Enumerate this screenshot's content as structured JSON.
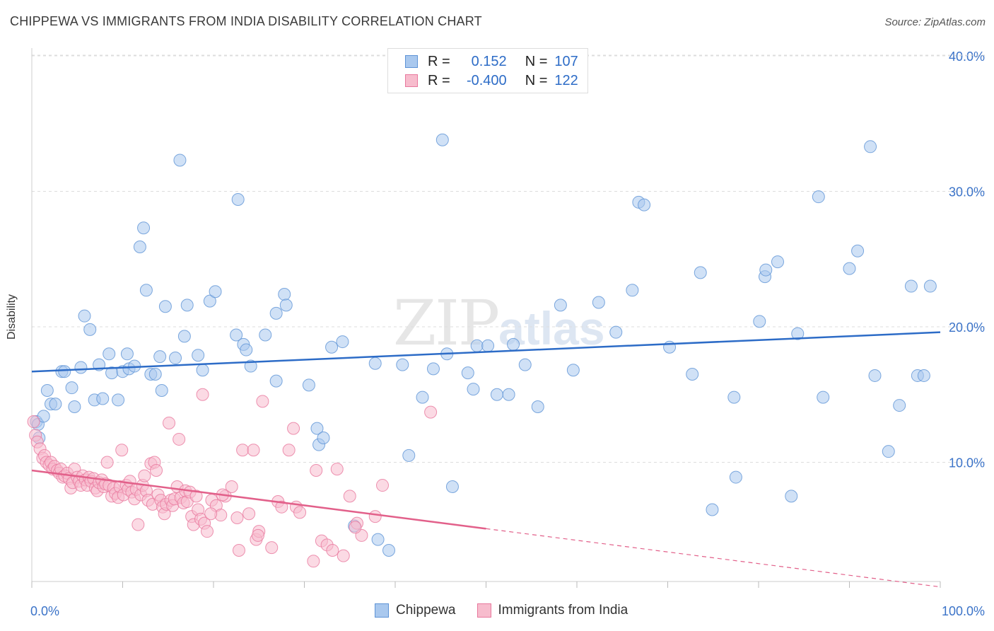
{
  "title": "CHIPPEWA VS IMMIGRANTS FROM INDIA DISABILITY CORRELATION CHART",
  "source": "Source: ZipAtlas.com",
  "watermark": {
    "zip": "ZIP",
    "atlas": "atlas"
  },
  "legend_top": {
    "rows": [
      {
        "r_label": "R =",
        "r_value": "0.152",
        "n_label": "N =",
        "n_value": "107"
      },
      {
        "r_label": "R =",
        "r_value": "-0.400",
        "n_label": "N =",
        "n_value": "122"
      }
    ]
  },
  "legend_bottom": [
    "Chippewa",
    "Immigrants from India"
  ],
  "colors": {
    "blue_fill": "#a9c8ee",
    "blue_stroke": "#5e93d6",
    "blue_line": "#2d6cc7",
    "pink_fill": "#f7bccd",
    "pink_stroke": "#e8789d",
    "pink_line": "#e2608a",
    "grid": "#dddddd",
    "tick_label": "#3b73c8"
  },
  "chart_data": {
    "type": "scatter",
    "title": "CHIPPEWA VS IMMIGRANTS FROM INDIA DISABILITY CORRELATION CHART",
    "xlabel": "",
    "ylabel": "Disability",
    "xlim": [
      0,
      100
    ],
    "ylim": [
      0,
      40
    ],
    "x_tick_labels": [
      "0.0%",
      "100.0%"
    ],
    "y_ticks": [
      10,
      20,
      30,
      40
    ],
    "y_tick_labels": [
      "10.0%",
      "20.0%",
      "30.0%",
      "40.0%"
    ],
    "grid": true,
    "series": [
      {
        "name": "Chippewa",
        "R": 0.152,
        "N": 107,
        "trend": {
          "x0": 0,
          "y0": 16.7,
          "x1": 100,
          "y1": 19.6,
          "dashed_from": null
        },
        "points": [
          [
            0.5,
            13.0
          ],
          [
            0.7,
            12.8
          ],
          [
            0.8,
            11.8
          ],
          [
            1.3,
            13.4
          ],
          [
            1.7,
            15.3
          ],
          [
            2.1,
            14.3
          ],
          [
            2.6,
            14.3
          ],
          [
            3.3,
            16.7
          ],
          [
            3.6,
            16.7
          ],
          [
            4.4,
            15.5
          ],
          [
            4.7,
            14.1
          ],
          [
            5.4,
            17.0
          ],
          [
            5.8,
            20.8
          ],
          [
            6.4,
            19.8
          ],
          [
            6.9,
            14.6
          ],
          [
            7.4,
            17.2
          ],
          [
            7.8,
            14.7
          ],
          [
            8.5,
            18.0
          ],
          [
            8.8,
            16.6
          ],
          [
            9.5,
            14.6
          ],
          [
            10.0,
            16.7
          ],
          [
            10.5,
            18.0
          ],
          [
            10.7,
            16.9
          ],
          [
            11.3,
            17.1
          ],
          [
            11.9,
            25.9
          ],
          [
            12.3,
            27.3
          ],
          [
            12.6,
            22.7
          ],
          [
            13.1,
            16.5
          ],
          [
            13.6,
            16.5
          ],
          [
            14.1,
            17.8
          ],
          [
            14.3,
            15.3
          ],
          [
            14.7,
            21.5
          ],
          [
            15.8,
            17.7
          ],
          [
            16.3,
            32.3
          ],
          [
            16.8,
            19.3
          ],
          [
            17.1,
            21.6
          ],
          [
            18.3,
            17.9
          ],
          [
            18.8,
            16.8
          ],
          [
            19.6,
            21.9
          ],
          [
            20.2,
            22.6
          ],
          [
            22.5,
            19.4
          ],
          [
            22.7,
            29.4
          ],
          [
            23.3,
            18.7
          ],
          [
            23.6,
            18.3
          ],
          [
            24.1,
            17.1
          ],
          [
            25.7,
            19.4
          ],
          [
            26.9,
            16.0
          ],
          [
            26.9,
            21.0
          ],
          [
            27.8,
            22.4
          ],
          [
            28.0,
            21.6
          ],
          [
            30.5,
            15.7
          ],
          [
            31.4,
            12.5
          ],
          [
            31.6,
            11.3
          ],
          [
            32.1,
            11.8
          ],
          [
            33.0,
            18.5
          ],
          [
            34.2,
            18.9
          ],
          [
            35.5,
            5.3
          ],
          [
            37.8,
            17.3
          ],
          [
            38.1,
            4.3
          ],
          [
            39.3,
            3.5
          ],
          [
            40.8,
            17.2
          ],
          [
            41.5,
            10.5
          ],
          [
            43.0,
            14.8
          ],
          [
            44.2,
            16.9
          ],
          [
            45.2,
            33.8
          ],
          [
            45.7,
            18.0
          ],
          [
            46.3,
            8.2
          ],
          [
            48.0,
            16.6
          ],
          [
            48.6,
            15.4
          ],
          [
            49.0,
            18.6
          ],
          [
            50.2,
            18.6
          ],
          [
            51.2,
            15.0
          ],
          [
            52.5,
            15.0
          ],
          [
            53.0,
            18.7
          ],
          [
            54.3,
            17.2
          ],
          [
            55.7,
            14.1
          ],
          [
            58.2,
            21.6
          ],
          [
            59.6,
            16.8
          ],
          [
            62.4,
            21.8
          ],
          [
            64.3,
            19.6
          ],
          [
            66.1,
            22.7
          ],
          [
            66.8,
            29.2
          ],
          [
            67.4,
            29.0
          ],
          [
            70.2,
            18.5
          ],
          [
            72.7,
            16.5
          ],
          [
            73.6,
            24.0
          ],
          [
            74.9,
            6.5
          ],
          [
            77.3,
            14.8
          ],
          [
            77.5,
            8.9
          ],
          [
            80.1,
            20.4
          ],
          [
            80.7,
            23.7
          ],
          [
            80.8,
            24.2
          ],
          [
            82.1,
            24.8
          ],
          [
            83.6,
            7.5
          ],
          [
            84.3,
            19.5
          ],
          [
            86.6,
            29.6
          ],
          [
            87.1,
            14.8
          ],
          [
            90.0,
            24.3
          ],
          [
            90.9,
            25.6
          ],
          [
            92.3,
            33.3
          ],
          [
            92.8,
            16.4
          ],
          [
            94.3,
            10.8
          ],
          [
            95.5,
            14.2
          ],
          [
            96.8,
            23.0
          ],
          [
            97.5,
            16.4
          ],
          [
            98.2,
            16.4
          ],
          [
            98.9,
            23.0
          ]
        ]
      },
      {
        "name": "Immigrants from India",
        "R": -0.4,
        "N": 122,
        "trend": {
          "x0": 0,
          "y0": 9.4,
          "x1": 100,
          "y1": 0.8,
          "dashed_from": 50
        },
        "points": [
          [
            0.2,
            13.0
          ],
          [
            0.4,
            12.0
          ],
          [
            0.6,
            11.5
          ],
          [
            0.9,
            11.0
          ],
          [
            1.2,
            10.3
          ],
          [
            1.4,
            10.5
          ],
          [
            1.6,
            10.0
          ],
          [
            1.9,
            9.8
          ],
          [
            2.1,
            10.0
          ],
          [
            2.3,
            9.5
          ],
          [
            2.5,
            9.7
          ],
          [
            2.8,
            9.4
          ],
          [
            3.0,
            9.2
          ],
          [
            3.2,
            9.5
          ],
          [
            3.4,
            8.9
          ],
          [
            3.6,
            9.0
          ],
          [
            3.9,
            9.2
          ],
          [
            4.1,
            8.8
          ],
          [
            4.3,
            8.1
          ],
          [
            4.5,
            8.5
          ],
          [
            4.7,
            9.5
          ],
          [
            5.0,
            8.9
          ],
          [
            5.2,
            8.6
          ],
          [
            5.4,
            8.3
          ],
          [
            5.6,
            9.0
          ],
          [
            5.9,
            8.7
          ],
          [
            6.1,
            8.3
          ],
          [
            6.3,
            8.9
          ],
          [
            6.5,
            8.6
          ],
          [
            6.8,
            8.8
          ],
          [
            7.0,
            8.1
          ],
          [
            7.2,
            7.9
          ],
          [
            7.4,
            8.5
          ],
          [
            7.7,
            8.7
          ],
          [
            7.9,
            8.2
          ],
          [
            8.1,
            8.4
          ],
          [
            8.3,
            10.0
          ],
          [
            8.5,
            8.3
          ],
          [
            8.8,
            7.5
          ],
          [
            9.0,
            8.1
          ],
          [
            9.2,
            7.7
          ],
          [
            9.5,
            7.4
          ],
          [
            9.7,
            8.2
          ],
          [
            9.9,
            10.9
          ],
          [
            10.1,
            7.6
          ],
          [
            10.4,
            8.3
          ],
          [
            10.6,
            8.0
          ],
          [
            10.8,
            8.6
          ],
          [
            11.0,
            7.8
          ],
          [
            11.3,
            7.3
          ],
          [
            11.5,
            8.0
          ],
          [
            11.7,
            5.4
          ],
          [
            12.0,
            7.6
          ],
          [
            12.2,
            8.3
          ],
          [
            12.4,
            9.0
          ],
          [
            12.6,
            7.9
          ],
          [
            12.8,
            7.2
          ],
          [
            13.1,
            9.9
          ],
          [
            13.3,
            6.9
          ],
          [
            13.5,
            10.0
          ],
          [
            13.7,
            9.4
          ],
          [
            13.9,
            7.6
          ],
          [
            14.2,
            7.2
          ],
          [
            14.4,
            6.7
          ],
          [
            14.6,
            6.2
          ],
          [
            14.8,
            6.9
          ],
          [
            15.1,
            12.9
          ],
          [
            15.3,
            7.2
          ],
          [
            15.5,
            6.8
          ],
          [
            15.7,
            7.3
          ],
          [
            16.0,
            8.2
          ],
          [
            16.2,
            11.7
          ],
          [
            16.4,
            7.4
          ],
          [
            16.7,
            7.0
          ],
          [
            16.9,
            7.9
          ],
          [
            17.1,
            7.1
          ],
          [
            17.4,
            7.8
          ],
          [
            17.6,
            6.0
          ],
          [
            17.8,
            5.4
          ],
          [
            18.1,
            7.5
          ],
          [
            18.3,
            6.5
          ],
          [
            18.6,
            5.8
          ],
          [
            18.8,
            15.0
          ],
          [
            19.0,
            5.5
          ],
          [
            19.3,
            4.9
          ],
          [
            19.8,
            7.2
          ],
          [
            20.3,
            6.8
          ],
          [
            20.8,
            6.1
          ],
          [
            21.3,
            7.5
          ],
          [
            22.0,
            8.2
          ],
          [
            22.6,
            5.9
          ],
          [
            23.2,
            10.9
          ],
          [
            23.9,
            6.2
          ],
          [
            24.4,
            10.9
          ],
          [
            24.7,
            4.3
          ],
          [
            25.0,
            4.9
          ],
          [
            25.4,
            14.5
          ],
          [
            27.1,
            7.1
          ],
          [
            27.5,
            6.7
          ],
          [
            28.3,
            10.9
          ],
          [
            28.8,
            12.5
          ],
          [
            29.1,
            6.7
          ],
          [
            29.5,
            6.3
          ],
          [
            31.3,
            9.4
          ],
          [
            31.9,
            4.2
          ],
          [
            32.5,
            3.9
          ],
          [
            33.1,
            3.5
          ],
          [
            33.6,
            9.5
          ],
          [
            34.3,
            3.1
          ],
          [
            35.0,
            7.5
          ],
          [
            35.8,
            5.5
          ],
          [
            36.3,
            4.6
          ],
          [
            37.8,
            6.0
          ],
          [
            38.6,
            8.3
          ],
          [
            43.9,
            13.7
          ],
          [
            22.8,
            3.5
          ],
          [
            26.4,
            3.7
          ],
          [
            31.0,
            2.7
          ],
          [
            35.6,
            5.2
          ],
          [
            24.9,
            4.6
          ],
          [
            19.7,
            6.2
          ],
          [
            21.0,
            7.6
          ]
        ]
      }
    ]
  }
}
